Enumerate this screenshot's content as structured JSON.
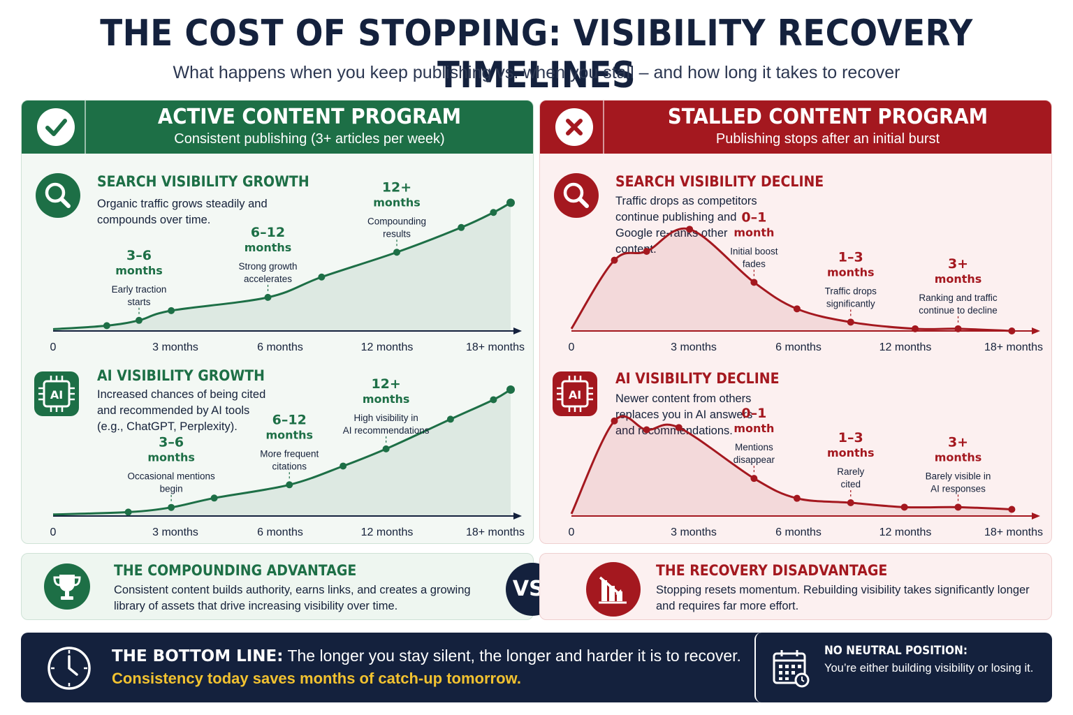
{
  "header": {
    "title": "THE COST OF STOPPING: VISIBILITY RECOVERY TIMELINES",
    "subtitle": "What happens when you keep publishing vs. when you stall – and how long it takes to recover"
  },
  "colors": {
    "active": "#1d6f46",
    "stalled": "#a4181f",
    "navy": "#14213d",
    "highlight": "#f2c230"
  },
  "active": {
    "title": "ACTIVE CONTENT PROGRAM",
    "subtitle": "Consistent publishing (3+ articles per week)",
    "icon": "check-icon",
    "search": {
      "title": "SEARCH VISIBILITY GROWTH",
      "desc": "Organic traffic grows steadily and compounds over time.",
      "icon": "search-icon"
    },
    "ai": {
      "title": "AI VISIBILITY GROWTH",
      "desc": "Increased chances of being cited and recommended by AI tools (e.g., ChatGPT, Perplexity).",
      "icon": "ai-chip-icon"
    }
  },
  "stalled": {
    "title": "STALLED CONTENT PROGRAM",
    "subtitle": "Publishing stops after an initial burst",
    "icon": "x-icon",
    "search": {
      "title": "SEARCH VISIBILITY DECLINE",
      "desc": "Traffic drops as competitors continue publishing and Google re-ranks other content.",
      "icon": "search-icon"
    },
    "ai": {
      "title": "AI VISIBILITY DECLINE",
      "desc": "Newer content from others replaces you in AI answers and recommendations.",
      "icon": "ai-chip-icon"
    }
  },
  "compare": {
    "left": {
      "title": "THE COMPOUNDING ADVANTAGE",
      "desc": "Consistent content builds authority, earns links, and creates a growing library of assets that drive increasing visibility over time.",
      "icon": "trophy-icon"
    },
    "vs": "VS.",
    "right": {
      "title": "THE RECOVERY DISADVANTAGE",
      "desc": "Stopping resets momentum. Rebuilding visibility takes significantly longer and requires far more effort.",
      "icon": "declining-bars-icon"
    }
  },
  "bottom": {
    "lead": "THE BOTTOM LINE:",
    "text": " The longer you stay silent, the longer and harder it is to recover.",
    "highlight": "Consistency today saves months of catch-up tomorrow.",
    "neutral_title": "NO NEUTRAL POSITION:",
    "neutral_text": "You’re either building visibility or losing it.",
    "clock_icon": "clock-icon",
    "calendar_icon": "calendar-icon"
  },
  "chart_data": [
    {
      "id": "search-growth",
      "type": "area",
      "color": "#1d6f46",
      "xticks": [
        {
          "x": 0,
          "label": "0"
        },
        {
          "x": 3,
          "label": "3 months"
        },
        {
          "x": 6,
          "label": "6 months"
        },
        {
          "x": 12,
          "label": "12 months"
        },
        {
          "x": 18,
          "label": "18+ months"
        }
      ],
      "points": [
        [
          0,
          0.02
        ],
        [
          2.5,
          0.06
        ],
        [
          4,
          0.12
        ],
        [
          5.5,
          0.23
        ],
        [
          10,
          0.38
        ],
        [
          12.5,
          0.61
        ],
        [
          16,
          0.89
        ],
        [
          19,
          1.17
        ],
        [
          20.5,
          1.34
        ],
        [
          21.3,
          1.45
        ]
      ],
      "ylim": [
        0,
        1.5
      ],
      "annotations": [
        {
          "x": 4,
          "value": "3–6",
          "unit": "months",
          "note": "Early traction starts"
        },
        {
          "x": 10,
          "value": "6–12",
          "unit": "months",
          "note": "Strong growth accelerates"
        },
        {
          "x": 16,
          "value": "12+",
          "unit": "months",
          "note": "Compounding results"
        }
      ]
    },
    {
      "id": "ai-growth",
      "type": "area",
      "color": "#1d6f46",
      "xticks": [
        {
          "x": 0,
          "label": "0"
        },
        {
          "x": 3,
          "label": "3 months"
        },
        {
          "x": 6,
          "label": "6 months"
        },
        {
          "x": 12,
          "label": "12 months"
        },
        {
          "x": 18,
          "label": "18+ months"
        }
      ],
      "points": [
        [
          0,
          0.02
        ],
        [
          3.5,
          0.05
        ],
        [
          5.5,
          0.11
        ],
        [
          7.5,
          0.23
        ],
        [
          11,
          0.4
        ],
        [
          13.5,
          0.64
        ],
        [
          15.5,
          0.86
        ],
        [
          18.5,
          1.24
        ],
        [
          20.5,
          1.49
        ],
        [
          21.3,
          1.62
        ]
      ],
      "ylim": [
        0,
        1.7
      ],
      "annotations": [
        {
          "x": 5.5,
          "value": "3–6",
          "unit": "months",
          "note": "Occasional mentions begin"
        },
        {
          "x": 11,
          "value": "6–12",
          "unit": "months",
          "note": "More frequent citations"
        },
        {
          "x": 15.5,
          "value": "12+",
          "unit": "months",
          "note": "High visibility in AI recommendations"
        }
      ]
    },
    {
      "id": "search-decline",
      "type": "area",
      "color": "#a4181f",
      "xticks": [
        {
          "x": 0,
          "label": "0"
        },
        {
          "x": 3,
          "label": "3 months"
        },
        {
          "x": 6,
          "label": "6 months"
        },
        {
          "x": 12,
          "label": "12 months"
        },
        {
          "x": 18,
          "label": "18+ months"
        }
      ],
      "points": [
        [
          0,
          0.01
        ],
        [
          2,
          0.32
        ],
        [
          3.5,
          0.36
        ],
        [
          5.5,
          0.46
        ],
        [
          8.5,
          0.22
        ],
        [
          10.5,
          0.1
        ],
        [
          13,
          0.04
        ],
        [
          16,
          0.01
        ],
        [
          18,
          0.01
        ],
        [
          20.5,
          0
        ]
      ],
      "ylim": [
        0,
        0.6
      ],
      "annotations": [
        {
          "x": 8.5,
          "value": "0–1",
          "unit": "month",
          "note": "Initial boost fades"
        },
        {
          "x": 13,
          "value": "1–3",
          "unit": "months",
          "note": "Traffic drops significantly"
        },
        {
          "x": 18,
          "value": "3+",
          "unit": "months",
          "note": "Ranking and traffic continue to decline"
        }
      ]
    },
    {
      "id": "ai-decline",
      "type": "area",
      "color": "#a4181f",
      "xticks": [
        {
          "x": 0,
          "label": "0"
        },
        {
          "x": 3,
          "label": "3 months"
        },
        {
          "x": 6,
          "label": "6 months"
        },
        {
          "x": 12,
          "label": "12 months"
        },
        {
          "x": 18,
          "label": "18+ months"
        }
      ],
      "points": [
        [
          0,
          0.01
        ],
        [
          2,
          0.43
        ],
        [
          3.5,
          0.39
        ],
        [
          5,
          0.4
        ],
        [
          8.5,
          0.17
        ],
        [
          10.5,
          0.08
        ],
        [
          13,
          0.06
        ],
        [
          15.5,
          0.04
        ],
        [
          18,
          0.04
        ],
        [
          20.5,
          0.03
        ]
      ],
      "ylim": [
        0,
        0.6
      ],
      "annotations": [
        {
          "x": 8.5,
          "value": "0–1",
          "unit": "month",
          "note": "Mentions disappear"
        },
        {
          "x": 13,
          "value": "1–3",
          "unit": "months",
          "note": "Rarely cited"
        },
        {
          "x": 18,
          "value": "3+",
          "unit": "months",
          "note": "Barely visible in AI responses"
        }
      ]
    }
  ]
}
